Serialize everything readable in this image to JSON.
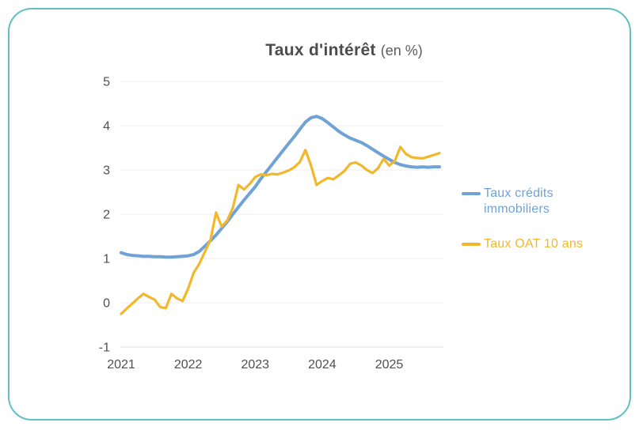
{
  "title": {
    "main": "Taux d'intérêt",
    "unit": "(en %)"
  },
  "legend": [
    {
      "label": "Taux crédits immobiliers",
      "color": "#6fa3d6"
    },
    {
      "label": "Taux OAT 10 ans",
      "color": "#f2b72b"
    }
  ],
  "colors": {
    "accent_border": "#5fc0c2",
    "credit_line": "#6fa3d6",
    "oat_line": "#f2b72b",
    "grid": "#ededed",
    "axis_text": "#4f4f4f"
  },
  "chart_data": {
    "type": "line",
    "title": "Taux d'intérêt (en %)",
    "x_unit": "month",
    "x_start": "2021-01",
    "x_end": "2025-10",
    "xticks": [
      "2021",
      "2022",
      "2023",
      "2024",
      "2025"
    ],
    "yticks": [
      5,
      4,
      3,
      2,
      1,
      0,
      -1
    ],
    "ylim": [
      -1,
      5
    ],
    "grid": "horizontal-only",
    "legend_position": "right",
    "series": [
      {
        "id": "taux-credits-immobiliers",
        "name": "Taux crédits immobiliers",
        "color": "#6fa3d6",
        "values": [
          1.13,
          1.09,
          1.07,
          1.06,
          1.05,
          1.05,
          1.04,
          1.04,
          1.03,
          1.03,
          1.04,
          1.05,
          1.06,
          1.09,
          1.16,
          1.28,
          1.4,
          1.53,
          1.68,
          1.83,
          2.0,
          2.16,
          2.32,
          2.47,
          2.62,
          2.8,
          2.96,
          3.12,
          3.28,
          3.44,
          3.6,
          3.75,
          3.92,
          4.08,
          4.18,
          4.21,
          4.16,
          4.07,
          3.97,
          3.87,
          3.79,
          3.72,
          3.67,
          3.62,
          3.55,
          3.47,
          3.39,
          3.31,
          3.24,
          3.17,
          3.12,
          3.09,
          3.07,
          3.06,
          3.07,
          3.06,
          3.07,
          3.07
        ]
      },
      {
        "id": "taux-oat-10-ans",
        "name": "Taux OAT 10 ans",
        "color": "#f2b72b",
        "values": [
          -0.25,
          -0.13,
          -0.02,
          0.1,
          0.2,
          0.13,
          0.07,
          -0.1,
          -0.12,
          0.2,
          0.1,
          0.04,
          0.32,
          0.68,
          0.88,
          1.15,
          1.42,
          2.04,
          1.72,
          1.86,
          2.15,
          2.66,
          2.56,
          2.68,
          2.84,
          2.9,
          2.88,
          2.91,
          2.9,
          2.94,
          2.99,
          3.06,
          3.18,
          3.45,
          3.1,
          2.66,
          2.75,
          2.82,
          2.79,
          2.88,
          2.98,
          3.14,
          3.17,
          3.1,
          3.0,
          2.93,
          3.04,
          3.25,
          3.1,
          3.2,
          3.52,
          3.36,
          3.29,
          3.27,
          3.26,
          3.3,
          3.34,
          3.38
        ]
      }
    ]
  }
}
